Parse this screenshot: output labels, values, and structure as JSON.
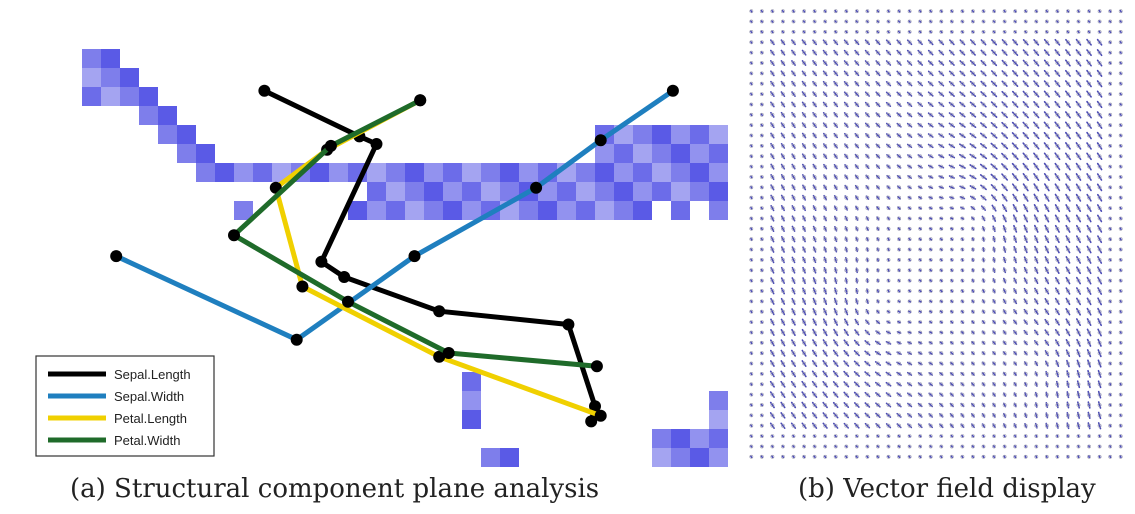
{
  "captions": {
    "a": "(a) Structural component plane analysis",
    "b": "(b) Vector field display"
  },
  "colors": {
    "cell": "#5a5ae6",
    "Sepal.Length": "#000000",
    "Sepal.Width": "#1f7fbf",
    "Petal.Length": "#f0d000",
    "Petal.Width": "#1f6b2a",
    "vector": "#2a2aa8"
  },
  "chart_data": [
    {
      "type": "line",
      "title": "",
      "xlabel": "",
      "ylabel": "",
      "grid": false,
      "legend_position": "bottom-left",
      "xlim": [
        0,
        36
      ],
      "ylim": [
        0,
        24
      ],
      "background_cells": [
        [
          2,
          1
        ],
        [
          3,
          1
        ],
        [
          2,
          2
        ],
        [
          3,
          2
        ],
        [
          4,
          2
        ],
        [
          2,
          3
        ],
        [
          3,
          3
        ],
        [
          4,
          3
        ],
        [
          5,
          3
        ],
        [
          5,
          4
        ],
        [
          6,
          4
        ],
        [
          6,
          5
        ],
        [
          7,
          5
        ],
        [
          7,
          6
        ],
        [
          8,
          6
        ],
        [
          8,
          7
        ],
        [
          9,
          7
        ],
        [
          10,
          7
        ],
        [
          11,
          7
        ],
        [
          12,
          7
        ],
        [
          13,
          7
        ],
        [
          14,
          7
        ],
        [
          15,
          7
        ],
        [
          16,
          7
        ],
        [
          17,
          7
        ],
        [
          18,
          7
        ],
        [
          19,
          7
        ],
        [
          20,
          7
        ],
        [
          21,
          7
        ],
        [
          22,
          7
        ],
        [
          23,
          7
        ],
        [
          24,
          7
        ],
        [
          25,
          7
        ],
        [
          26,
          7
        ],
        [
          27,
          7
        ],
        [
          28,
          7
        ],
        [
          29,
          7
        ],
        [
          30,
          7
        ],
        [
          31,
          7
        ],
        [
          32,
          7
        ],
        [
          33,
          7
        ],
        [
          34,
          7
        ],
        [
          35,
          7
        ],
        [
          29,
          5
        ],
        [
          30,
          5
        ],
        [
          31,
          5
        ],
        [
          32,
          5
        ],
        [
          33,
          5
        ],
        [
          34,
          5
        ],
        [
          35,
          5
        ],
        [
          29,
          6
        ],
        [
          30,
          6
        ],
        [
          31,
          6
        ],
        [
          32,
          6
        ],
        [
          33,
          6
        ],
        [
          34,
          6
        ],
        [
          35,
          6
        ],
        [
          17,
          8
        ],
        [
          18,
          8
        ],
        [
          19,
          8
        ],
        [
          20,
          8
        ],
        [
          21,
          8
        ],
        [
          22,
          8
        ],
        [
          23,
          8
        ],
        [
          24,
          8
        ],
        [
          25,
          8
        ],
        [
          26,
          8
        ],
        [
          27,
          8
        ],
        [
          28,
          8
        ],
        [
          29,
          8
        ],
        [
          30,
          8
        ],
        [
          31,
          8
        ],
        [
          32,
          8
        ],
        [
          33,
          8
        ],
        [
          34,
          8
        ],
        [
          35,
          8
        ],
        [
          10,
          9
        ],
        [
          16,
          9
        ],
        [
          17,
          9
        ],
        [
          18,
          9
        ],
        [
          19,
          9
        ],
        [
          20,
          9
        ],
        [
          21,
          9
        ],
        [
          22,
          9
        ],
        [
          23,
          9
        ],
        [
          24,
          9
        ],
        [
          25,
          9
        ],
        [
          26,
          9
        ],
        [
          27,
          9
        ],
        [
          28,
          9
        ],
        [
          29,
          9
        ],
        [
          30,
          9
        ],
        [
          31,
          9
        ],
        [
          33,
          9
        ],
        [
          35,
          9
        ],
        [
          22,
          18
        ],
        [
          22,
          19
        ],
        [
          22,
          20
        ],
        [
          23,
          22
        ],
        [
          24,
          22
        ],
        [
          32,
          21
        ],
        [
          33,
          21
        ],
        [
          34,
          21
        ],
        [
          35,
          21
        ],
        [
          32,
          22
        ],
        [
          33,
          22
        ],
        [
          34,
          22
        ],
        [
          35,
          22
        ],
        [
          35,
          19
        ],
        [
          35,
          20
        ]
      ],
      "series": [
        {
          "name": "Sepal.Length",
          "points": [
            [
              11.6,
              3.2
            ],
            [
              16.6,
              5.6
            ],
            [
              17.5,
              6.0
            ],
            [
              14.6,
              12.2
            ],
            [
              15.8,
              13.0
            ],
            [
              20.8,
              14.8
            ],
            [
              27.6,
              15.5
            ],
            [
              29.0,
              19.8
            ],
            [
              28.8,
              20.6
            ]
          ]
        },
        {
          "name": "Sepal.Width",
          "points": [
            [
              3.8,
              11.9
            ],
            [
              13.3,
              16.3
            ],
            [
              19.5,
              11.9
            ],
            [
              25.9,
              8.3
            ],
            [
              29.3,
              5.8
            ],
            [
              33.1,
              3.2
            ]
          ]
        },
        {
          "name": "Petal.Length",
          "points": [
            [
              19.8,
              3.7
            ],
            [
              14.9,
              6.3
            ],
            [
              12.2,
              8.3
            ],
            [
              13.6,
              13.5
            ],
            [
              20.8,
              17.2
            ],
            [
              29.3,
              20.3
            ]
          ]
        },
        {
          "name": "Petal.Width",
          "points": [
            [
              19.8,
              3.7
            ],
            [
              15.1,
              6.1
            ],
            [
              10.0,
              10.8
            ],
            [
              16.0,
              14.3
            ],
            [
              21.3,
              17.0
            ],
            [
              29.1,
              17.7
            ]
          ]
        }
      ]
    },
    {
      "type": "vector_field",
      "title": "",
      "xlabel": "",
      "ylabel": "",
      "grid": false,
      "cols": 36,
      "rows": 44,
      "vortices": [
        {
          "x": 0.62,
          "y": 0.45,
          "strength": 1.0
        },
        {
          "x": 0.33,
          "y": 0.68,
          "strength": -0.85
        },
        {
          "x": 0.8,
          "y": 0.78,
          "strength": 0.55
        }
      ]
    }
  ]
}
